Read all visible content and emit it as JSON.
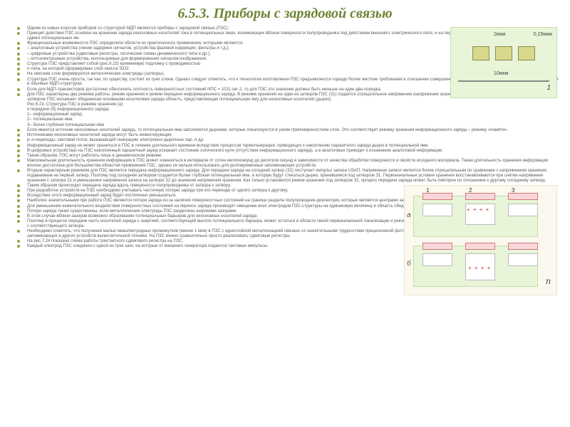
{
  "title": "6.5.3. Приборы с зарядовой связью",
  "bullets": [
    "Одним из новых классов приборов со структурой МДП являются приборы с зарядовой связью (ПЗС).",
    "Принцип действия ПЗС основан на хранении заряда неосновных носителей тока в потенциальных ямах, возникающих вблизи поверхности полупроводника под действием внешнего электрического поля, и на перемещении этого заряда вдоль поверхности при сдвиге потенциальных ям.",
    "Функциональные возможности ПЗС определили области их практического применения, которыми являются:",
    "– аналоговые устройства (линии задержки сигналов, устройства фазовой коррекции, фильтры и т.д.);",
    "– цифровые устройства (сдвиговые регистры, логические схемы динамического типа и др.);",
    "– оптоэлектронные устройства, используемые для формирования сигналов изображения.",
    "Структура ПЗС представляет собой (рис.6.23) кремниевую подложку с проводимостью",
    "n-типа, на которой сформирован слой окисла SiO2.",
    "На окисном слое формируются металлические электроды (затворы).",
    "Структура ПЗС очень проста, так как, по существу, состоит из трех слоев. Однако следует отметить, что к технологии изготовления ПЗС предъявляются гораздо более жесткие требования в отношении совершенства границы раздела полупроводник-диэлектрик, чем в обычных МДП-структурах.",
    "Если для МДП-транзисторов достаточно обеспечить плотность поверхностных состояний NПС = 1011 см−2, то для ПЗС это значение должно быть меньше на один-два порядка.",
    "Для ПЗС характерны два режима работы: режим хранения и режим передачи информационного заряда. В режиме хранения на один из затворов ПЗС (З1) подается отрицательное напряжение (напряжение хранения UХР). Под действием этого напряжения под затвором ПЗС возникает обедненная основными носителями заряда область, представляющая потенциальную яму для неосновных носителей (дырок)."
  ],
  "figCaption": "Рис.6.23. Структура ПЗС в режиме хранения (а)",
  "caption2_line": "и передачи (б)   информационного заряда:",
  "legend": [
    "1– информационный заряд;",
    "2– потенциальная яма;",
    "3– более глубокая потенциальная яма"
  ],
  "bullets2": [
    "Если имеется источник неосновных носителей заряда, то потенциальная яма заполняется дырками, которые локализуются в узком приповерхностном слое. Это соответствует режиму хранения информационного заряда – режиму «памяти».",
    "Источниками неосновных носителей заряда могут быть инжектирующие",
    "p–n-переходы, световой поток, вызывающий генерацию электронно-дырочных пар, и др.",
    "Информационный заряд не может храниться в ПЗС в течение длительного времени вследствие процессов термогенерации, приводящих к накоплению паразитного заряда дырок в потенциальной яме.",
    "В цифровых устройствах на ПЗС накопленный паразитный заряд искажает состояние логического нуля (отсутствие информационного заряда), а в аналоговых приводит к искажению аналоговой информации.",
    "Таким образом, ПЗС могут работать лишь в динамическом режиме.",
    "Максимальная длительность хранения информации в ПЗС может изменяться в интервале от сотен миллисекунд до десятков секунд в зависимости от качества обработки поверхности и свойств исходного материала. Такая длительность хранения информации вполне достаточна для большинства областей применения ПЗС, однако их нельзя использовать для долговременных запоминающих устройств.",
    "Вторым характерным режимом для ПЗС является передача информационного заряда. Для передачи заряда на соседний затвор (З2) поступает импульс записи UЗАП. Напряжение записи является более отрицательным по сравнению с напряжением хранения, подаваемым на первый затвор. Поэтому под соседним затвором создается более глубокая потенциальная яма, в которую будут стекаться дырки, хранившиеся под затвором З1. Первоначальные условия хранения восстанавливаются при снятии напряжения хранения с затвора З1 и уменьшении напряжения записи на затворе З2 до значения напряжения хранения. Как только установился режим хранения под затвором З2, процесс передачи заряда может быть повторен по отношению к другому соседнему затвору.",
    "Таким образом происходит передача заряда вдоль поверхности полупроводника от затвора к затвору.",
    "При разработке устройств на ПЗС необходимо учитывать частичную потерю заряда при его переходе от одного затвора к другому.",
    "Вследствие этого информационный заряд будет постепенно уменьшаться.",
    "Наиболее значительными при работе ПЗС являются потери заряда из-за наличия поверхностных состояний на границе раздела полупроводник-диэлектрик, которые являются центрами захвата носителей.",
    "Для уменьшения нежелательного воздействия поверхностных состояний на перенос заряда производят смещение всех электродов ПЗС-структуры на одинаковую величину в область обеднения.",
    "Потери заряда также существенны, если металлические электроды ПЗС разделены широкими зазорами.",
    "В этом случае вблизи зазоров возможно образование потенциальных барьеров для неосновных носителей заряда.",
    "Поэтому в процессе передачи часть носителей заряда с энергией, соответствующей высоте потенциального барьера, может остаться в области своей первоначальной локализации и рекомбинировать с ее носителями после снятия импульса напряжения хранения с соответствующего затвора.",
    "Необходимо отметить, что получение малых межэлектродных промежутков (менее 1 мкм) в ПЗС с однослойной металлизацией связано со значительными трудностями прецизионной фотолитографии. Как уже указывалось, ПЗС используются для построения запоминающих и других устройств вычислительной техники. На ПЗС можно сравнительно просто реализовать сдвиговые регистры.",
    "На рис.7.24 показана схема работы трехтактного сдвигового регистра на ПЗС.",
    "Каждый электрод ПЗС соединен с одной из трех шин, на которые от внешнего генератора подаются тактовые импульсы."
  ],
  "figTop": {
    "l2mk": "2мкм",
    "l015": "0,15мкм",
    "l10": "10мкм",
    "num1": "1",
    "bg": "#e8f5d8",
    "padColor": "#d9d98c"
  },
  "figSide": {
    "la": "a",
    "lb": "б",
    "ln": "n",
    "t1": "1",
    "t2": "2",
    "t3": "3",
    "charge": "+ + + +"
  }
}
